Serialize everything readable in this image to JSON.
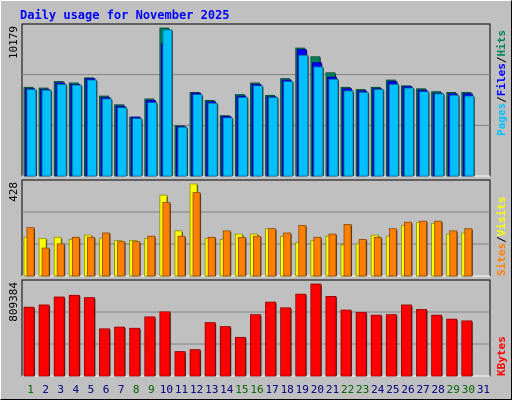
{
  "title": "Daily usage for November 2025",
  "colors": {
    "hits": "#00805c",
    "files": "#0000ff",
    "pages": "#00c0ff",
    "visits": "#ffff00",
    "sites": "#ff8000",
    "kbytes": "#ff0000",
    "weekday_label": "#000080",
    "weekend_label": "#006400",
    "axis_label": "#000000"
  },
  "panel_labels": {
    "top": [
      "Pages",
      "/",
      "Files",
      "/",
      "Hits"
    ],
    "mid": [
      "Sites",
      "/",
      "Visits"
    ],
    "bottom": [
      "KBytes"
    ]
  },
  "weekend_days": [
    1,
    8,
    9,
    15,
    16,
    22,
    23,
    29,
    30
  ],
  "chart_data": [
    {
      "type": "bar",
      "title": "Daily usage for November 2025",
      "categories": [
        "1",
        "2",
        "3",
        "4",
        "5",
        "6",
        "7",
        "8",
        "9",
        "10",
        "11",
        "12",
        "13",
        "14",
        "15",
        "16",
        "17",
        "18",
        "19",
        "20",
        "21",
        "22",
        "23",
        "24",
        "25",
        "26",
        "27",
        "28",
        "29",
        "30",
        "31"
      ],
      "ymax_label": "10179",
      "ylim": [
        0,
        10179
      ],
      "series": [
        {
          "name": "Hits",
          "values": [
            6100,
            6050,
            6500,
            6400,
            6750,
            5500,
            4900,
            4050,
            5300,
            10179,
            3450,
            5750,
            5200,
            4150,
            5600,
            6400,
            5550,
            6700,
            8800,
            8200,
            7100,
            6100,
            5950,
            6100,
            6600,
            6200,
            6000,
            5800,
            5750,
            5750,
            0
          ]
        },
        {
          "name": "Files",
          "values": [
            6000,
            5950,
            6400,
            6300,
            6700,
            5400,
            4800,
            4050,
            5200,
            9100,
            3400,
            5700,
            5100,
            4100,
            5500,
            6300,
            5450,
            6600,
            8700,
            7800,
            6800,
            6000,
            5850,
            6000,
            6500,
            6150,
            5900,
            5700,
            5650,
            5650,
            0
          ]
        },
        {
          "name": "Pages",
          "values": [
            5950,
            5900,
            6300,
            6250,
            6600,
            5300,
            4700,
            3950,
            5050,
            10050,
            3350,
            5600,
            5000,
            4000,
            5400,
            6200,
            5400,
            6500,
            8300,
            7500,
            6650,
            5850,
            5750,
            5950,
            6300,
            6050,
            5800,
            5650,
            5550,
            5500,
            0
          ]
        }
      ]
    },
    {
      "type": "bar",
      "categories": [
        "1",
        "2",
        "3",
        "4",
        "5",
        "6",
        "7",
        "8",
        "9",
        "10",
        "11",
        "12",
        "13",
        "14",
        "15",
        "16",
        "17",
        "18",
        "19",
        "20",
        "21",
        "22",
        "23",
        "24",
        "25",
        "26",
        "27",
        "28",
        "29",
        "30",
        "31"
      ],
      "ymax_label": "428",
      "ylim": [
        0,
        428
      ],
      "series": [
        {
          "name": "Visits",
          "values": [
            180,
            175,
            180,
            170,
            190,
            175,
            165,
            165,
            175,
            376,
            210,
            428,
            175,
            170,
            195,
            195,
            220,
            185,
            155,
            165,
            185,
            145,
            150,
            190,
            185,
            235,
            250,
            245,
            195,
            200,
            0
          ]
        },
        {
          "name": "Sites",
          "values": [
            225,
            130,
            150,
            180,
            180,
            200,
            160,
            160,
            185,
            342,
            185,
            388,
            180,
            210,
            180,
            185,
            220,
            200,
            235,
            180,
            195,
            240,
            170,
            180,
            220,
            250,
            255,
            255,
            210,
            220,
            0
          ]
        }
      ]
    },
    {
      "type": "bar",
      "categories": [
        "1",
        "2",
        "3",
        "4",
        "5",
        "6",
        "7",
        "8",
        "9",
        "10",
        "11",
        "12",
        "13",
        "14",
        "15",
        "16",
        "17",
        "18",
        "19",
        "20",
        "21",
        "22",
        "23",
        "24",
        "25",
        "26",
        "27",
        "28",
        "29",
        "30",
        "31"
      ],
      "ymax_label": "809384",
      "ylim": [
        0,
        809384
      ],
      "series": [
        {
          "name": "KBytes",
          "values": [
            605000,
            625000,
            695000,
            710000,
            690000,
            415000,
            430000,
            420000,
            520000,
            565000,
            215000,
            232000,
            470000,
            435000,
            340000,
            540000,
            650000,
            600000,
            720000,
            809384,
            700000,
            580000,
            560000,
            535000,
            540000,
            625000,
            585000,
            535000,
            500000,
            485000,
            0
          ]
        }
      ]
    }
  ]
}
